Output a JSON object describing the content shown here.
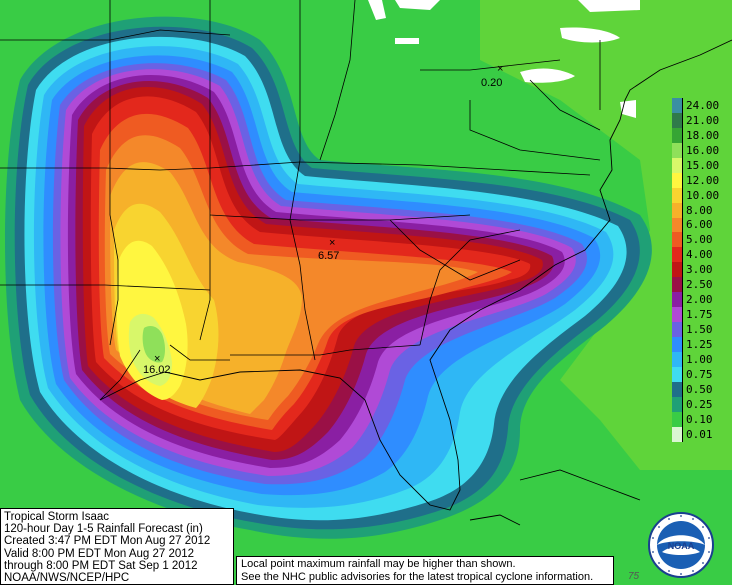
{
  "legend": {
    "items": [
      {
        "label": "24.00",
        "color": "#3a8fa3"
      },
      {
        "label": "21.00",
        "color": "#2f7a4a"
      },
      {
        "label": "18.00",
        "color": "#36a534"
      },
      {
        "label": "16.00",
        "color": "#8fe05a"
      },
      {
        "label": "15.00",
        "color": "#d8f76a"
      },
      {
        "label": "12.00",
        "color": "#fff640"
      },
      {
        "label": "10.00",
        "color": "#f8d430"
      },
      {
        "label": "8.00",
        "color": "#f6b12a"
      },
      {
        "label": "6.00",
        "color": "#f4882a"
      },
      {
        "label": "5.00",
        "color": "#ef5b22"
      },
      {
        "label": "4.00",
        "color": "#e3281c"
      },
      {
        "label": "3.00",
        "color": "#c01515"
      },
      {
        "label": "2.50",
        "color": "#9a1046"
      },
      {
        "label": "2.00",
        "color": "#8a1fa3"
      },
      {
        "label": "1.75",
        "color": "#b04ad6"
      },
      {
        "label": "1.50",
        "color": "#6a62e4"
      },
      {
        "label": "1.25",
        "color": "#2f8dff"
      },
      {
        "label": "1.00",
        "color": "#2fb7f5"
      },
      {
        "label": "0.75",
        "color": "#3fdcf0"
      },
      {
        "label": "0.50",
        "color": "#1f6f8a"
      },
      {
        "label": "0.25",
        "color": "#1fa076"
      },
      {
        "label": "0.10",
        "color": "#39cc45"
      },
      {
        "label": "0.01",
        "color": "#dbf6d2"
      }
    ]
  },
  "info": {
    "line1": "Tropical Storm Isaac",
    "line2": "120-hour Day 1-5 Rainfall Forecast (in)",
    "line3": "Created 3:47 PM EDT Mon Aug 27 2012",
    "line4": "Valid 8:00 PM EDT Mon Aug 27 2012",
    "line5": "through 8:00 PM EDT Sat Sep 1 2012",
    "line6": "NOAA/NWS/NCEP/HPC"
  },
  "note": {
    "line1": "Local point maximum rainfall may be higher than shown.",
    "line2": "See the NHC public advisories for the latest tropical cyclone information."
  },
  "points": [
    {
      "value": "0.20"
    },
    {
      "value": "6.57"
    },
    {
      "value": "16.02"
    }
  ],
  "marker_symbol": "×",
  "corner_label": "75",
  "logo": {
    "text": "NOAA"
  }
}
